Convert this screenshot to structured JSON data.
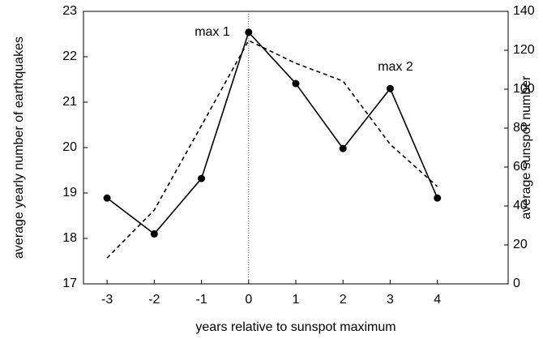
{
  "chart_data": {
    "type": "line",
    "xlabel": "years relative to sunspot maximum",
    "ylabel": "average yearly number of earthquakes",
    "y2label": "average sunspot number",
    "x": [
      -3,
      -2,
      -1,
      0,
      1,
      2,
      3,
      4
    ],
    "series": [
      {
        "color": "#000000",
        "style": "solid",
        "markers": true,
        "axis": "y",
        "values": [
          18.89,
          18.1,
          19.32,
          22.54,
          21.41,
          19.98,
          21.3,
          18.89
        ]
      },
      {
        "color": "#000000",
        "style": "dashed",
        "markers": false,
        "axis": "y2",
        "values": [
          13.3,
          37.9,
          81.3,
          125,
          113.3,
          104.2,
          71.7,
          50
        ]
      }
    ],
    "annotations": [
      "max 1",
      "max 2"
    ],
    "reference_x": 0,
    "xlim": [
      -3.5,
      5.5
    ],
    "xticks": [
      -3,
      -2,
      -1,
      0,
      1,
      2,
      3,
      4
    ],
    "ylim": [
      17,
      23
    ],
    "yticks": [
      17,
      18,
      19,
      20,
      21,
      22,
      23
    ],
    "y2lim": [
      0,
      140
    ],
    "y2ticks": [
      0,
      20,
      40,
      60,
      80,
      100,
      120,
      140
    ]
  }
}
